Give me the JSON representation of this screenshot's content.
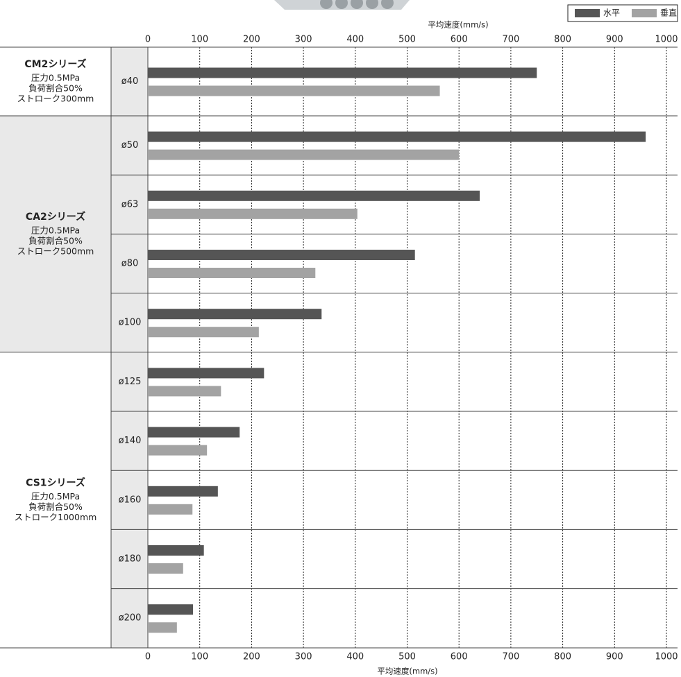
{
  "chart_data": {
    "type": "bar",
    "orientation": "horizontal",
    "xlabel": "平均速度(mm/s)",
    "xlim": [
      0,
      1000
    ],
    "xticks": [
      0,
      100,
      200,
      300,
      400,
      500,
      600,
      700,
      800,
      900,
      1000
    ],
    "grid": true,
    "legend": "upper right",
    "groups": [
      {
        "name": "CM2シリーズ",
        "lines": [
          "圧力0.5MPa",
          "負荷割合50%",
          "ストローク300mm"
        ],
        "categories": [
          "ø40"
        ]
      },
      {
        "name": "CA2シリーズ",
        "lines": [
          "圧力0.5MPa",
          "負荷割合50%",
          "ストローク500mm"
        ],
        "categories": [
          "ø50",
          "ø63",
          "ø80",
          "ø100"
        ]
      },
      {
        "name": "CS1シリーズ",
        "lines": [
          "圧力0.5MPa",
          "負荷割合50%",
          "ストローク1000mm"
        ],
        "categories": [
          "ø125",
          "ø140",
          "ø160",
          "ø180",
          "ø200"
        ]
      }
    ],
    "series": [
      {
        "name": "水平",
        "color": "#555555",
        "values": [
          750,
          960,
          640,
          515,
          335,
          224,
          177,
          135,
          108,
          87
        ]
      },
      {
        "name": "垂直",
        "color": "#a3a3a3",
        "values": [
          563,
          600,
          404,
          323,
          214,
          141,
          114,
          86,
          68,
          56
        ]
      }
    ]
  }
}
